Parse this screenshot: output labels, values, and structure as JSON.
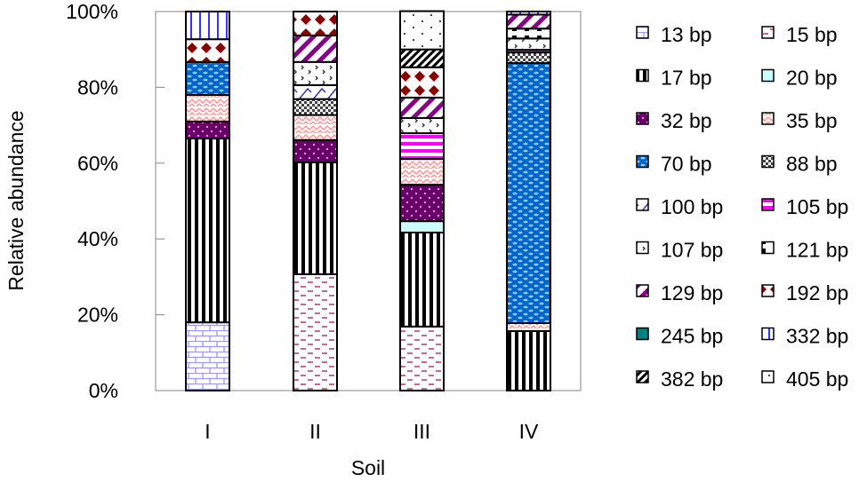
{
  "chart_data": {
    "type": "bar",
    "stacked": true,
    "title": "",
    "xlabel": "Soil",
    "ylabel": "Relative abundance",
    "ylim": [
      0,
      100
    ],
    "yticks": [
      "0%",
      "20%",
      "40%",
      "60%",
      "80%",
      "100%"
    ],
    "grid": false,
    "legend_position": "right",
    "categories": [
      "I",
      "II",
      "III",
      "IV"
    ],
    "series": [
      {
        "name": "13 bp",
        "pattern": "brick",
        "color": "#9999ff",
        "values": [
          18.0,
          0,
          0,
          0
        ]
      },
      {
        "name": "15 bp",
        "pattern": "dashes",
        "color": "#cc6699",
        "values": [
          0,
          30.7,
          16.9,
          0
        ]
      },
      {
        "name": "17 bp",
        "pattern": "vstripes",
        "color": "#000000",
        "values": [
          48.5,
          29.5,
          24.8,
          15.7
        ]
      },
      {
        "name": "20 bp",
        "pattern": "solid",
        "color": "#ccffff",
        "values": [
          0,
          0,
          3.0,
          0
        ]
      },
      {
        "name": "32 bp",
        "pattern": "dots-on-dark",
        "color": "#660066",
        "values": [
          4.5,
          5.9,
          9.6,
          0
        ]
      },
      {
        "name": "35 bp",
        "pattern": "zigzag",
        "color": "#ff9999",
        "values": [
          7.0,
          6.6,
          6.8,
          2.1
        ]
      },
      {
        "name": "70 bp",
        "pattern": "dots-on-dark",
        "color": "#0066cc",
        "values": [
          8.7,
          0,
          0,
          68.6
        ]
      },
      {
        "name": "88 bp",
        "pattern": "checker",
        "color": "#000000",
        "values": [
          0,
          4.2,
          0,
          2.8
        ]
      },
      {
        "name": "100 bp",
        "pattern": "scribble",
        "color": "#3333aa",
        "values": [
          0,
          3.7,
          0,
          0
        ]
      },
      {
        "name": "105 bp",
        "pattern": "hstripes",
        "color": "#ff00ff",
        "values": [
          0,
          0,
          6.8,
          0.7
        ]
      },
      {
        "name": "107 bp",
        "pattern": "sparse-marks",
        "color": "#333333",
        "values": [
          0,
          6.1,
          4.0,
          3.0
        ]
      },
      {
        "name": "121 bp",
        "pattern": "blocks",
        "color": "#000000",
        "values": [
          0,
          0,
          0,
          2.6
        ]
      },
      {
        "name": "129 bp",
        "pattern": "diag-stripes",
        "color": "#880088",
        "values": [
          0,
          7.0,
          5.4,
          3.7
        ]
      },
      {
        "name": "192 bp",
        "pattern": "diamonds",
        "color": "#880000",
        "values": [
          6.0,
          6.3,
          8.0,
          0
        ]
      },
      {
        "name": "245 bp",
        "pattern": "solid",
        "color": "#008080",
        "values": [
          0,
          0,
          0,
          0
        ]
      },
      {
        "name": "332 bp",
        "pattern": "vstripes",
        "color": "#3333ff",
        "values": [
          7.3,
          0,
          0,
          0.8
        ]
      },
      {
        "name": "382 bp",
        "pattern": "diag-stripes",
        "color": "#000000",
        "values": [
          0,
          0,
          4.7,
          0
        ]
      },
      {
        "name": "405 bp",
        "pattern": "sparse-dots",
        "color": "#333333",
        "values": [
          0,
          0,
          10.1,
          0
        ]
      }
    ]
  }
}
